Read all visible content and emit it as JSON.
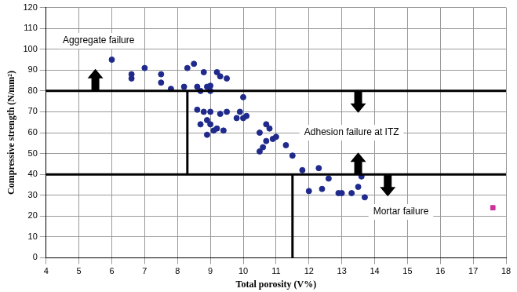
{
  "chart_data": {
    "type": "scatter",
    "x_label": "Total porosity (V%)",
    "y_label": "Compressive strength (N/mm²)",
    "xlim": [
      4,
      18
    ],
    "ylim": [
      0,
      120
    ],
    "xticks": [
      4,
      5,
      6,
      7,
      8,
      9,
      10,
      11,
      12,
      13,
      14,
      15,
      16,
      17,
      18
    ],
    "yticks": [
      0,
      10,
      20,
      30,
      40,
      50,
      60,
      70,
      80,
      90,
      100,
      110,
      120
    ],
    "grid": true,
    "series": [
      {
        "color": "#1f2a8c",
        "marker": "circle",
        "x": [
          6.0,
          6.6,
          6.6,
          7.0,
          7.5,
          7.5,
          7.8,
          8.2,
          8.3,
          8.5,
          8.6,
          8.7,
          8.8,
          8.9,
          9.0,
          9.0,
          9.2,
          9.3,
          9.5,
          8.6,
          8.7,
          8.8,
          8.9,
          8.9,
          9.0,
          9.0,
          9.1,
          9.2,
          9.3,
          9.4,
          9.5,
          9.8,
          9.9,
          10.0,
          10.0,
          10.1,
          10.5,
          10.5,
          10.6,
          10.7,
          10.7,
          10.8,
          10.9,
          11.0,
          11.3,
          11.5,
          11.8,
          12.0,
          12.3,
          12.4,
          12.6,
          12.9,
          13.0,
          13.3,
          13.5,
          13.6,
          13.7
        ],
        "values": [
          95,
          88,
          86,
          91,
          88,
          84,
          81,
          82,
          91,
          93,
          82,
          80,
          89,
          82,
          80,
          82.5,
          89,
          87,
          86,
          71,
          64,
          70,
          66,
          59,
          70,
          64,
          61,
          62,
          69,
          61,
          70,
          67,
          70,
          77,
          67,
          68,
          60,
          51,
          53,
          64,
          56,
          62,
          57,
          58,
          54,
          49,
          42,
          32,
          43,
          33,
          38,
          31,
          31,
          31,
          34,
          39,
          29
        ]
      },
      {
        "color": "#cc3399",
        "marker": "square",
        "x": [
          17.6
        ],
        "values": [
          24
        ]
      }
    ],
    "lines": [
      {
        "x": [
          4,
          18
        ],
        "y": [
          80,
          80
        ]
      },
      {
        "x": [
          4,
          18
        ],
        "y": [
          40,
          40
        ]
      },
      {
        "x": [
          8.3,
          8.3
        ],
        "y": [
          40,
          80
        ]
      },
      {
        "x": [
          11.5,
          11.5
        ],
        "y": [
          0,
          40
        ]
      }
    ],
    "annotations": [
      {
        "text": "Aggregate failure",
        "x": 5.6,
        "y": 104
      },
      {
        "text": "Adhesion failure at ITZ",
        "x": 13.3,
        "y": 60
      },
      {
        "text": "Mortar failure",
        "x": 14.8,
        "y": 22
      }
    ]
  }
}
